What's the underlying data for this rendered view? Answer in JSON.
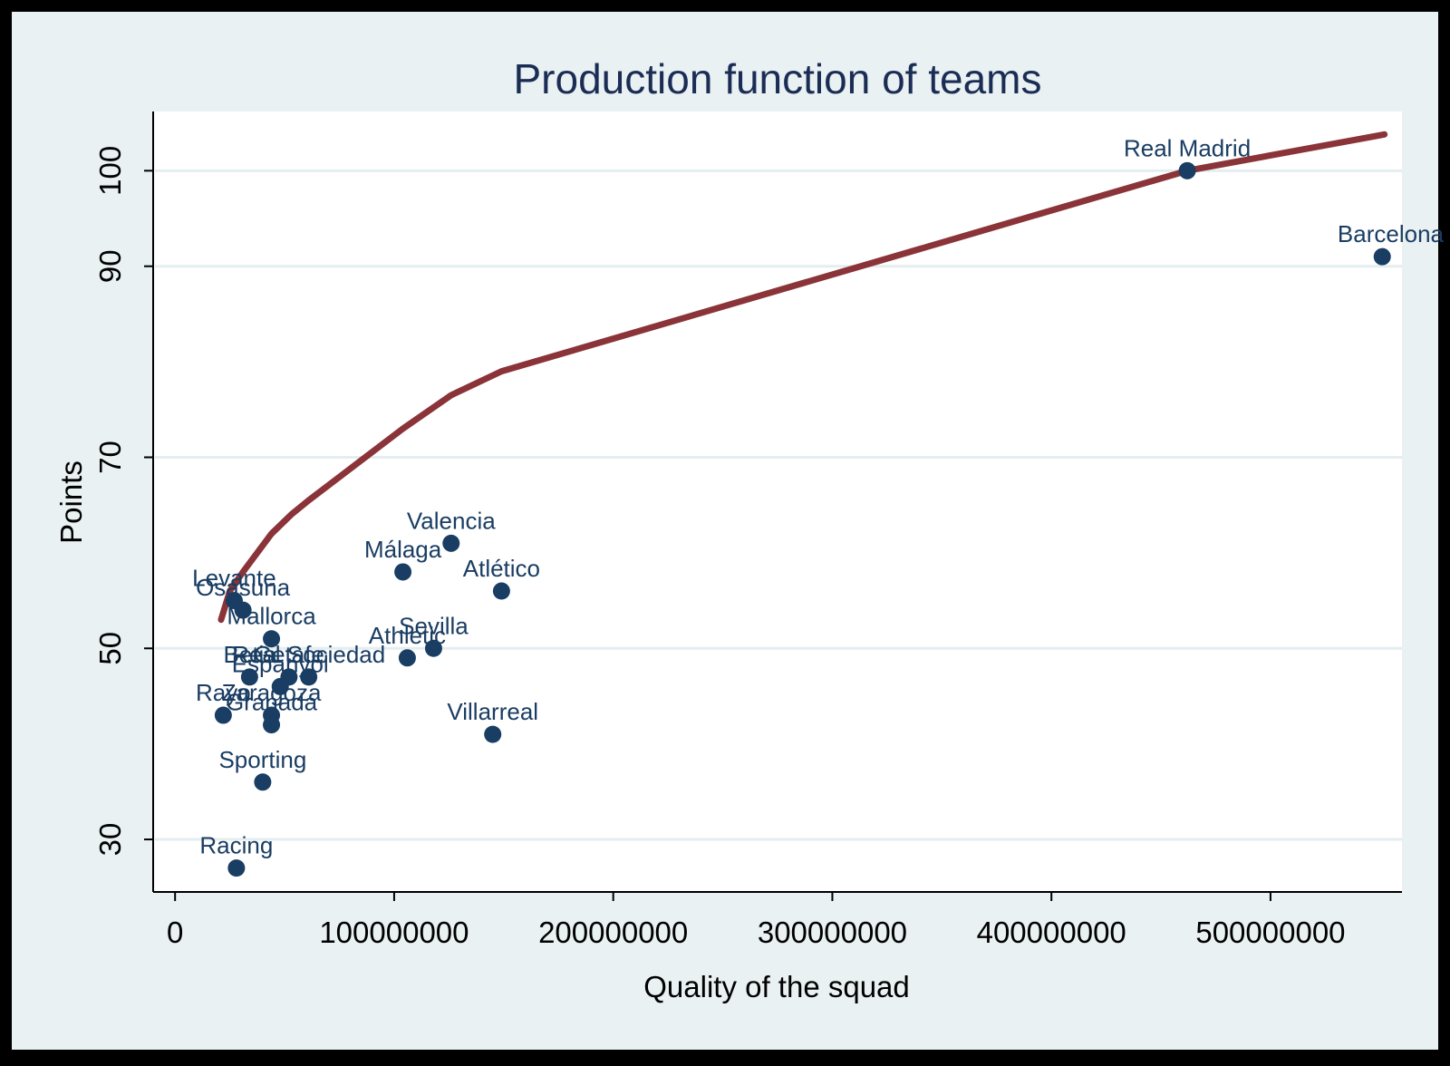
{
  "chart_data": {
    "type": "scatter",
    "title": "Production function of teams",
    "xlabel": "Quality of the squad",
    "ylabel": "Points",
    "xlim": [
      -10000000,
      560000000
    ],
    "ylim": [
      24.5,
      106.2
    ],
    "x_ticks": [
      0,
      100000000,
      200000000,
      300000000,
      400000000,
      500000000
    ],
    "x_tick_labels": [
      "0",
      "100000000",
      "200000000",
      "300000000",
      "400000000",
      "500000000"
    ],
    "y_ticks": [
      30,
      50,
      70,
      90,
      100
    ],
    "y_tick_labels": [
      "30",
      "50",
      "70",
      "90",
      "100"
    ],
    "grid": true,
    "colors": {
      "background": "#e9f1f3",
      "plot_area": "#ffffff",
      "marker": "#1a3d63",
      "fit_line": "#8a3338",
      "gridline": "#e4eef0",
      "title": "#1c2d55"
    },
    "points": [
      {
        "label": "Real Madrid",
        "x": 462000000,
        "y": 100
      },
      {
        "label": "Barcelona",
        "x": 551000000,
        "y": 91
      },
      {
        "label": "Valencia",
        "x": 126000000,
        "y": 61
      },
      {
        "label": "Málaga",
        "x": 104000000,
        "y": 58
      },
      {
        "label": "Atlético",
        "x": 149000000,
        "y": 56
      },
      {
        "label": "Levante",
        "x": 27000000,
        "y": 55
      },
      {
        "label": "Osasuna",
        "x": 31000000,
        "y": 54
      },
      {
        "label": "Mallorca",
        "x": 44000000,
        "y": 51
      },
      {
        "label": "Sevilla",
        "x": 118000000,
        "y": 50
      },
      {
        "label": "Athletic",
        "x": 106000000,
        "y": 49
      },
      {
        "label": "Betis",
        "x": 34000000,
        "y": 47
      },
      {
        "label": "Getafe",
        "x": 52000000,
        "y": 47
      },
      {
        "label": "Real Sociedad",
        "x": 61000000,
        "y": 47
      },
      {
        "label": "Espanyol",
        "x": 48000000,
        "y": 46
      },
      {
        "label": "Rayo",
        "x": 22000000,
        "y": 43
      },
      {
        "label": "Zaragoza",
        "x": 44000000,
        "y": 43
      },
      {
        "label": "Granada",
        "x": 44000000,
        "y": 42
      },
      {
        "label": "Villarreal",
        "x": 145000000,
        "y": 41
      },
      {
        "label": "Sporting",
        "x": 40000000,
        "y": 36
      },
      {
        "label": "Racing",
        "x": 28000000,
        "y": 27
      }
    ],
    "fit_line": {
      "x": [
        21000000,
        25000000,
        31000000,
        44000000,
        53000000,
        61000000,
        104000000,
        126000000,
        149000000,
        462000000,
        552000000
      ],
      "y": [
        53,
        56,
        58,
        62,
        64,
        65.5,
        73,
        76.5,
        79,
        100,
        103.8
      ]
    }
  }
}
